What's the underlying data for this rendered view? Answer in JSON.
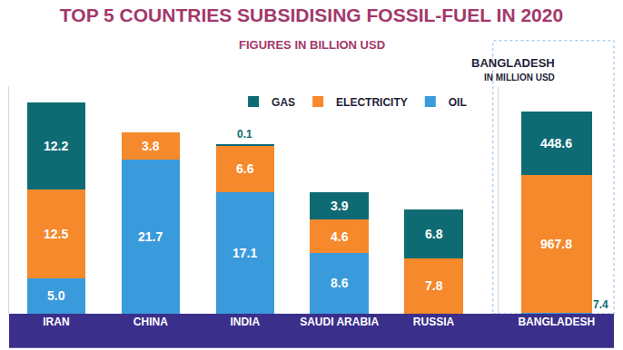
{
  "chart_data": [
    {
      "type": "bar",
      "title": "TOP 5 COUNTRIES SUBSIDISING FOSSIL-FUEL IN 2020",
      "subtitle": "FIGURES IN BILLION USD",
      "categories": [
        "IRAN",
        "CHINA",
        "INDIA",
        "SAUDI ARABIA",
        "RUSSIA"
      ],
      "series": [
        {
          "name": "OIL",
          "color": "#3a9bdc",
          "values": [
            5.0,
            21.7,
            17.1,
            8.6,
            null
          ],
          "value_labels": [
            "5.0",
            "21.7",
            "17.1",
            "8.6",
            null
          ]
        },
        {
          "name": "ELECTRICITY",
          "color": "#f5892b",
          "values": [
            12.5,
            3.8,
            6.6,
            4.6,
            7.8
          ]
        },
        {
          "name": "GAS",
          "color": "#0f6b73",
          "values": [
            12.2,
            null,
            0.1,
            3.9,
            6.8
          ]
        }
      ],
      "ylim": [
        0,
        32
      ],
      "stacked": true,
      "data_labels": true,
      "tick_labels": "x",
      "legend": "upper right"
    },
    {
      "type": "bar",
      "title": "BANGLADESH",
      "subtitle": "IN MILLION USD",
      "categories": [
        "BANGLADESH"
      ],
      "series": [
        {
          "name": "OIL",
          "color": "#3a9bdc",
          "values": [
            7.4
          ]
        },
        {
          "name": "ELECTRICITY",
          "color": "#f5892b",
          "values": [
            967.8
          ]
        },
        {
          "name": "GAS",
          "color": "#0f6b73",
          "values": [
            448.6
          ]
        }
      ],
      "ylim": [
        0,
        1600
      ],
      "stacked": true,
      "data_labels": true,
      "tick_labels": "x"
    }
  ]
}
